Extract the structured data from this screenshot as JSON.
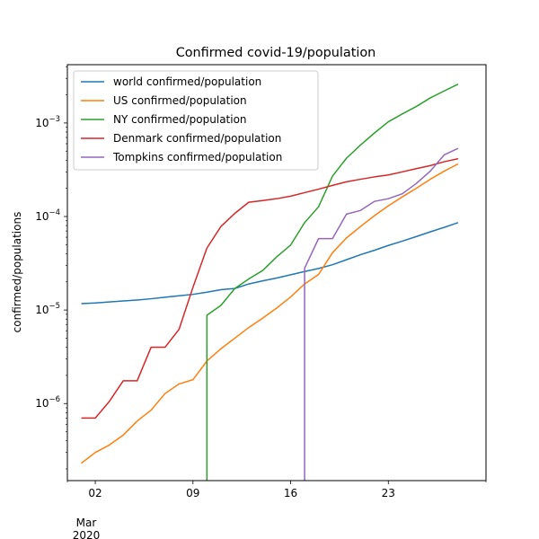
{
  "chart_data": {
    "type": "line",
    "title": "Confirmed covid-19/population",
    "xlabel": "",
    "ylabel": "confirmed/populations",
    "yscale": "log",
    "ylim": [
      1.5e-07,
      0.0042
    ],
    "xlim": [
      "2020-02-29",
      "2020-03-30"
    ],
    "x_ticks": [
      {
        "date": "2020-03-02",
        "label": "02"
      },
      {
        "date": "2020-03-09",
        "label": "09"
      },
      {
        "date": "2020-03-16",
        "label": "16"
      },
      {
        "date": "2020-03-23",
        "label": "23"
      }
    ],
    "x_minor_ticks": [
      "2020-02-29",
      "2020-03-30"
    ],
    "x_offset_label": [
      "Mar",
      "2020"
    ],
    "y_ticks": [
      {
        "value": 1e-06,
        "base": "10",
        "exp": "−6"
      },
      {
        "value": 1e-05,
        "base": "10",
        "exp": "−5"
      },
      {
        "value": 0.0001,
        "base": "10",
        "exp": "−4"
      },
      {
        "value": 0.001,
        "base": "10",
        "exp": "−3"
      }
    ],
    "grid": false,
    "legend_position": "top-left",
    "series": [
      {
        "name": "world confirmed/population",
        "color": "#1f77b4",
        "points": [
          [
            "2020-03-01",
            1.17e-05
          ],
          [
            "2020-03-02",
            1.19e-05
          ],
          [
            "2020-03-03",
            1.22e-05
          ],
          [
            "2020-03-04",
            1.25e-05
          ],
          [
            "2020-03-05",
            1.28e-05
          ],
          [
            "2020-03-06",
            1.32e-05
          ],
          [
            "2020-03-07",
            1.37e-05
          ],
          [
            "2020-03-08",
            1.42e-05
          ],
          [
            "2020-03-09",
            1.47e-05
          ],
          [
            "2020-03-10",
            1.55e-05
          ],
          [
            "2020-03-11",
            1.65e-05
          ],
          [
            "2020-03-12",
            1.7e-05
          ],
          [
            "2020-03-13",
            1.9e-05
          ],
          [
            "2020-03-14",
            2.05e-05
          ],
          [
            "2020-03-15",
            2.2e-05
          ],
          [
            "2020-03-16",
            2.38e-05
          ],
          [
            "2020-03-17",
            2.58e-05
          ],
          [
            "2020-03-18",
            2.78e-05
          ],
          [
            "2020-03-19",
            3.05e-05
          ],
          [
            "2020-03-20",
            3.45e-05
          ],
          [
            "2020-03-21",
            3.9e-05
          ],
          [
            "2020-03-22",
            4.35e-05
          ],
          [
            "2020-03-23",
            4.9e-05
          ],
          [
            "2020-03-24",
            5.45e-05
          ],
          [
            "2020-03-25",
            6.1e-05
          ],
          [
            "2020-03-26",
            6.85e-05
          ],
          [
            "2020-03-27",
            7.65e-05
          ],
          [
            "2020-03-28",
            8.6e-05
          ]
        ]
      },
      {
        "name": "US confirmed/population",
        "color": "#ff7f0e",
        "points": [
          [
            "2020-03-01",
            2.3e-07
          ],
          [
            "2020-03-02",
            3e-07
          ],
          [
            "2020-03-03",
            3.6e-07
          ],
          [
            "2020-03-04",
            4.6e-07
          ],
          [
            "2020-03-05",
            6.5e-07
          ],
          [
            "2020-03-06",
            8.5e-07
          ],
          [
            "2020-03-07",
            1.28e-06
          ],
          [
            "2020-03-08",
            1.62e-06
          ],
          [
            "2020-03-09",
            1.8e-06
          ],
          [
            "2020-03-10",
            2.85e-06
          ],
          [
            "2020-03-11",
            3.85e-06
          ],
          [
            "2020-03-12",
            5e-06
          ],
          [
            "2020-03-13",
            6.5e-06
          ],
          [
            "2020-03-14",
            8.2e-06
          ],
          [
            "2020-03-15",
            1.05e-05
          ],
          [
            "2020-03-16",
            1.38e-05
          ],
          [
            "2020-03-17",
            1.9e-05
          ],
          [
            "2020-03-18",
            2.4e-05
          ],
          [
            "2020-03-19",
            4.1e-05
          ],
          [
            "2020-03-20",
            5.9e-05
          ],
          [
            "2020-03-21",
            7.8e-05
          ],
          [
            "2020-03-22",
            0.000102
          ],
          [
            "2020-03-23",
            0.00013
          ],
          [
            "2020-03-24",
            0.000162
          ],
          [
            "2020-03-25",
            0.0002
          ],
          [
            "2020-03-26",
            0.00025
          ],
          [
            "2020-03-27",
            0.000305
          ],
          [
            "2020-03-28",
            0.000365
          ]
        ]
      },
      {
        "name": "NY confirmed/population",
        "color": "#2ca02c",
        "points": [
          [
            "2020-03-10",
            1.2e-07
          ],
          [
            "2020-03-10",
            8.8e-06
          ],
          [
            "2020-03-11",
            1.12e-05
          ],
          [
            "2020-03-12",
            1.7e-05
          ],
          [
            "2020-03-13",
            2.15e-05
          ],
          [
            "2020-03-14",
            2.65e-05
          ],
          [
            "2020-03-15",
            3.7e-05
          ],
          [
            "2020-03-16",
            4.95e-05
          ],
          [
            "2020-03-17",
            8.6e-05
          ],
          [
            "2020-03-18",
            0.000127
          ],
          [
            "2020-03-19",
            0.00027
          ],
          [
            "2020-03-20",
            0.00042
          ],
          [
            "2020-03-21",
            0.00058
          ],
          [
            "2020-03-22",
            0.00078
          ],
          [
            "2020-03-23",
            0.00103
          ],
          [
            "2020-03-24",
            0.00125
          ],
          [
            "2020-03-25",
            0.0015
          ],
          [
            "2020-03-26",
            0.00185
          ],
          [
            "2020-03-27",
            0.0022
          ],
          [
            "2020-03-28",
            0.0026
          ]
        ]
      },
      {
        "name": "Denmark confirmed/population",
        "color": "#d62728",
        "points": [
          [
            "2020-03-01",
            7e-07
          ],
          [
            "2020-03-02",
            7e-07
          ],
          [
            "2020-03-03",
            1.05e-06
          ],
          [
            "2020-03-04",
            1.75e-06
          ],
          [
            "2020-03-05",
            1.75e-06
          ],
          [
            "2020-03-06",
            4e-06
          ],
          [
            "2020-03-07",
            4e-06
          ],
          [
            "2020-03-08",
            6.2e-06
          ],
          [
            "2020-03-09",
            1.75e-05
          ],
          [
            "2020-03-10",
            4.6e-05
          ],
          [
            "2020-03-11",
            7.8e-05
          ],
          [
            "2020-03-12",
            0.000108
          ],
          [
            "2020-03-13",
            0.000142
          ],
          [
            "2020-03-14",
            0.000148
          ],
          [
            "2020-03-15",
            0.000155
          ],
          [
            "2020-03-16",
            0.000165
          ],
          [
            "2020-03-17",
            0.00018
          ],
          [
            "2020-03-18",
            0.000196
          ],
          [
            "2020-03-19",
            0.000215
          ],
          [
            "2020-03-20",
            0.000235
          ],
          [
            "2020-03-21",
            0.00025
          ],
          [
            "2020-03-22",
            0.000265
          ],
          [
            "2020-03-23",
            0.000278
          ],
          [
            "2020-03-24",
            0.0003
          ],
          [
            "2020-03-25",
            0.000325
          ],
          [
            "2020-03-26",
            0.00035
          ],
          [
            "2020-03-27",
            0.000385
          ],
          [
            "2020-03-28",
            0.000415
          ]
        ]
      },
      {
        "name": "Tompkins confirmed/population",
        "color": "#9467bd",
        "points": [
          [
            "2020-03-17",
            1.2e-07
          ],
          [
            "2020-03-17",
            2.8e-05
          ],
          [
            "2020-03-18",
            5.8e-05
          ],
          [
            "2020-03-19",
            5.8e-05
          ],
          [
            "2020-03-20",
            0.000106
          ],
          [
            "2020-03-21",
            0.000116
          ],
          [
            "2020-03-22",
            0.000145
          ],
          [
            "2020-03-23",
            0.000155
          ],
          [
            "2020-03-24",
            0.000175
          ],
          [
            "2020-03-25",
            0.000225
          ],
          [
            "2020-03-26",
            0.000305
          ],
          [
            "2020-03-27",
            0.000455
          ],
          [
            "2020-03-28",
            0.000535
          ]
        ]
      }
    ]
  }
}
